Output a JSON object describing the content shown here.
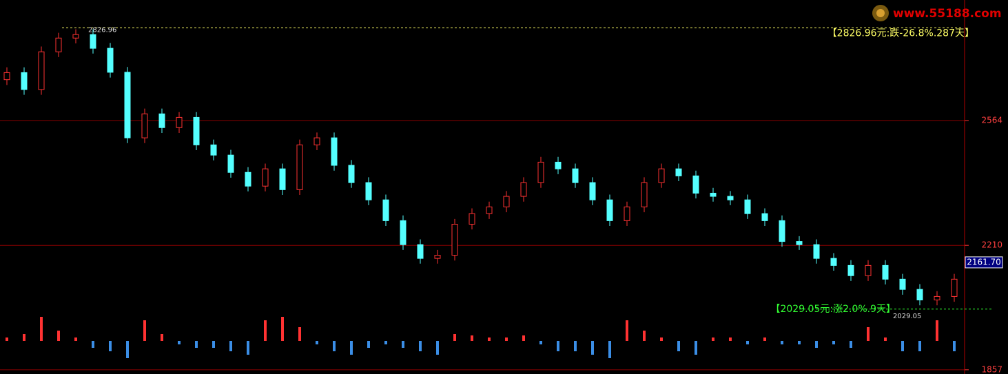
{
  "chart_data": [
    {
      "type": "candlestick",
      "open": [
        2680,
        2700,
        2652,
        2759,
        2798,
        2808,
        2769,
        2701,
        2515,
        2583,
        2544,
        2573,
        2495,
        2466,
        2417,
        2378,
        2427,
        2368,
        2495,
        2515,
        2437,
        2388,
        2339,
        2280,
        2212,
        2173,
        2182,
        2270,
        2300,
        2319,
        2349,
        2388,
        2446,
        2427,
        2388,
        2339,
        2280,
        2319,
        2388,
        2427,
        2407,
        2358,
        2349,
        2339,
        2300,
        2280,
        2221,
        2212,
        2173,
        2153,
        2124,
        2153,
        2114,
        2085,
        2055,
        2065
      ],
      "close": [
        2700,
        2652,
        2759,
        2798,
        2808,
        2769,
        2701,
        2515,
        2583,
        2544,
        2573,
        2495,
        2466,
        2417,
        2378,
        2427,
        2368,
        2495,
        2515,
        2437,
        2388,
        2339,
        2280,
        2212,
        2173,
        2182,
        2270,
        2300,
        2319,
        2349,
        2388,
        2446,
        2427,
        2388,
        2339,
        2280,
        2319,
        2388,
        2427,
        2407,
        2358,
        2349,
        2339,
        2300,
        2280,
        2221,
        2212,
        2173,
        2153,
        2124,
        2153,
        2114,
        2085,
        2055,
        2065,
        2114
      ],
      "high": [
        2715,
        2715,
        2774,
        2813,
        2823,
        2823,
        2784,
        2716,
        2598,
        2598,
        2588,
        2588,
        2510,
        2481,
        2432,
        2442,
        2442,
        2510,
        2530,
        2530,
        2452,
        2403,
        2354,
        2295,
        2227,
        2197,
        2285,
        2315,
        2334,
        2364,
        2403,
        2461,
        2461,
        2442,
        2403,
        2354,
        2334,
        2403,
        2442,
        2442,
        2422,
        2373,
        2364,
        2354,
        2315,
        2295,
        2236,
        2227,
        2188,
        2168,
        2168,
        2168,
        2129,
        2100,
        2080,
        2129
      ],
      "low": [
        2665,
        2637,
        2637,
        2744,
        2783,
        2754,
        2686,
        2500,
        2500,
        2529,
        2529,
        2480,
        2451,
        2402,
        2363,
        2363,
        2353,
        2353,
        2480,
        2422,
        2373,
        2324,
        2265,
        2197,
        2158,
        2158,
        2167,
        2255,
        2285,
        2304,
        2334,
        2373,
        2412,
        2373,
        2324,
        2265,
        2265,
        2304,
        2373,
        2392,
        2343,
        2334,
        2324,
        2285,
        2265,
        2206,
        2197,
        2158,
        2138,
        2109,
        2109,
        2099,
        2070,
        2040,
        2040,
        2050
      ],
      "up_color": "#ff3232",
      "down_color": "#54ffff",
      "ylim": [
        1845,
        2906
      ],
      "yticks": [
        1857,
        2210,
        2564
      ],
      "grid": true,
      "grid_color": "#8a0000",
      "levels": [
        {
          "value": 2826.96,
          "label": "2826.96",
          "note": "【2826.96元:跌-26.8%.287天】",
          "color": "#ffff66"
        },
        {
          "value": 2029.05,
          "label": "2029.05",
          "note": "【2029.05元:涨2.0%.9天】",
          "color": "#33ff33"
        }
      ],
      "last_price": {
        "value": 2161.7,
        "label": "2161.70"
      },
      "watermark": "www.55188.com"
    },
    {
      "type": "histogram",
      "values": [
        5,
        10,
        35,
        15,
        5,
        -10,
        -15,
        -25,
        30,
        10,
        -5,
        -10,
        -10,
        -15,
        -20,
        30,
        35,
        20,
        -5,
        -15,
        -20,
        -10,
        -5,
        -10,
        -15,
        -20,
        10,
        8,
        5,
        5,
        8,
        -5,
        -15,
        -15,
        -20,
        -25,
        30,
        15,
        5,
        -15,
        -20,
        5,
        5,
        -5,
        5,
        -5,
        -5,
        -10,
        -5,
        -10,
        20,
        5,
        -15,
        -15,
        30,
        -15
      ],
      "ylim": [
        -48,
        48
      ],
      "pos_color": "#ff3232",
      "neg_color": "#3b8ee6"
    }
  ]
}
